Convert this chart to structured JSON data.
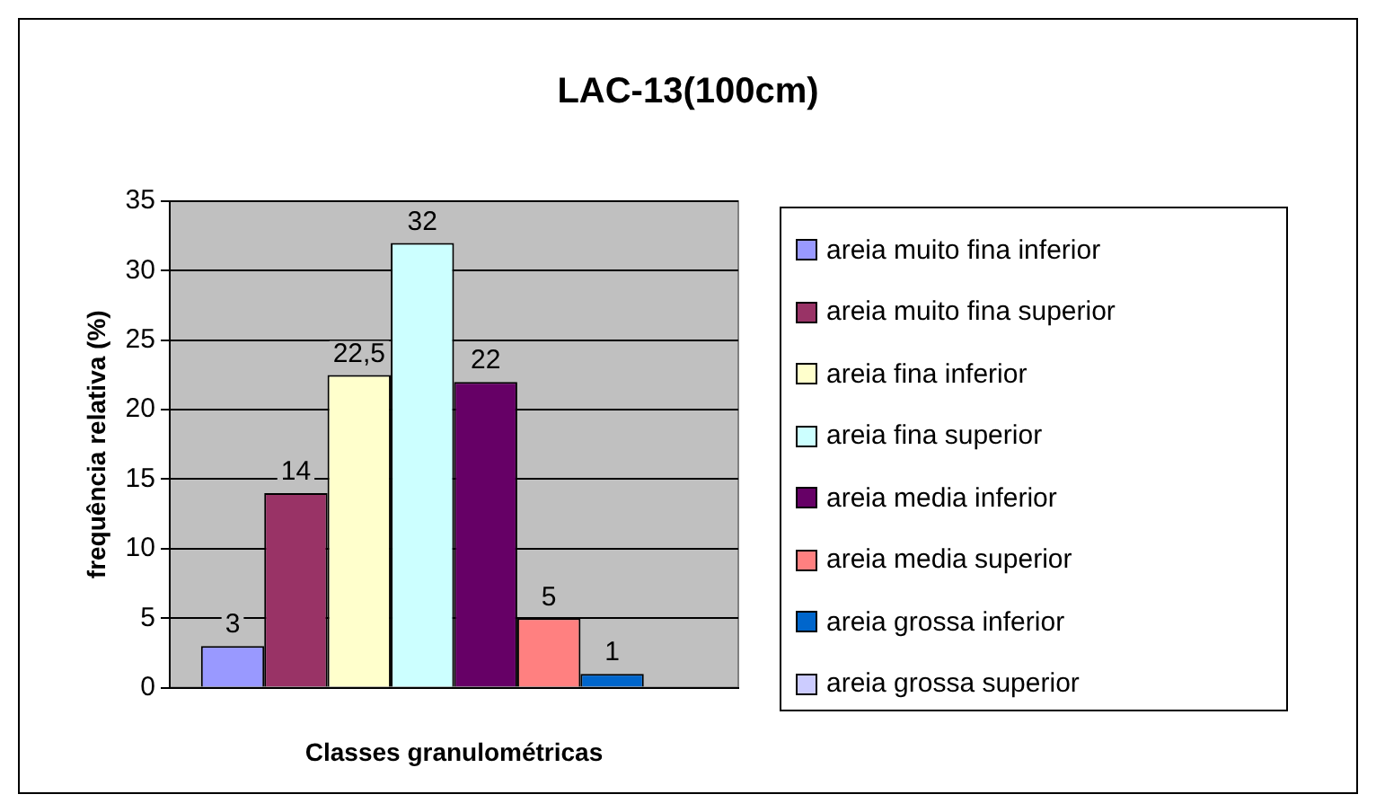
{
  "chart_data": {
    "type": "bar",
    "title": "LAC-13(100cm)",
    "xlabel": "Classes granulométricas",
    "ylabel": "frequência relativa (%)",
    "categories": [
      null
    ],
    "series": [
      {
        "name": "areia muito fina inferior",
        "color": "#9999ff",
        "values": [
          3
        ],
        "value_labels": [
          "3"
        ]
      },
      {
        "name": "areia muito fina superior",
        "color": "#993366",
        "values": [
          14
        ],
        "value_labels": [
          "14"
        ]
      },
      {
        "name": "areia fina inferior",
        "color": "#ffffcc",
        "values": [
          22.5
        ],
        "value_labels": [
          "22,5"
        ]
      },
      {
        "name": "areia fina superior",
        "color": "#ccffff",
        "values": [
          32
        ],
        "value_labels": [
          "32"
        ]
      },
      {
        "name": "areia media inferior",
        "color": "#660066",
        "values": [
          22
        ],
        "value_labels": [
          "22"
        ]
      },
      {
        "name": "areia media superior",
        "color": "#ff8080",
        "values": [
          5
        ],
        "value_labels": [
          "5"
        ]
      },
      {
        "name": "areia grossa inferior",
        "color": "#0066cc",
        "values": [
          1
        ],
        "value_labels": [
          "1"
        ]
      },
      {
        "name": "areia grossa superior",
        "color": "#ccccff",
        "values": [
          0
        ],
        "value_labels": [
          null
        ]
      }
    ],
    "ylim": [
      0,
      35
    ],
    "yticks": [
      0,
      5,
      10,
      15,
      20,
      25,
      30,
      35
    ],
    "grid": "y",
    "legend": "right"
  }
}
